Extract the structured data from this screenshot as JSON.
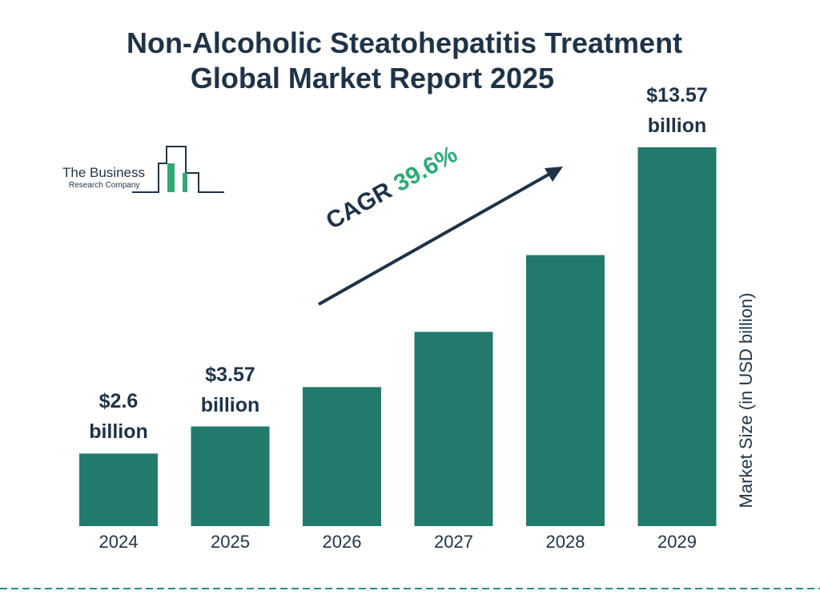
{
  "chart_data": {
    "type": "bar",
    "title": [
      "Non-Alcoholic Steatohepatitis Treatment",
      "Global Market Report 2025"
    ],
    "categories": [
      "2024",
      "2025",
      "2026",
      "2027",
      "2028",
      "2029"
    ],
    "values": [
      2.6,
      3.57,
      4.98,
      6.96,
      9.71,
      13.57
    ],
    "value_labels": [
      "$2.6 billion",
      "$3.57 billion",
      null,
      null,
      null,
      "$13.57 billion"
    ],
    "color": "#217a6b",
    "y_axis_label": "Market Size (in USD billion)",
    "annotation": {
      "label": "CAGR",
      "value": "39.6%"
    },
    "logo": {
      "line1": "The Business",
      "line2": "Research Company"
    }
  }
}
